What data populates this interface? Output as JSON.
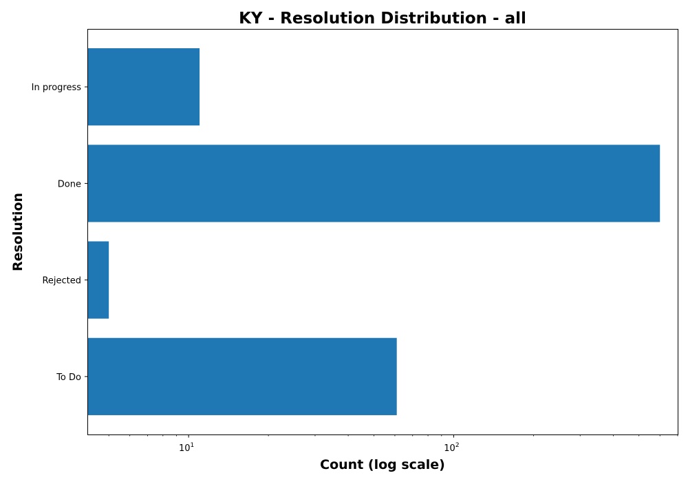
{
  "chart_data": {
    "type": "bar",
    "orientation": "horizontal",
    "title": "KY - Resolution Distribution - all",
    "xlabel": "Count (log scale)",
    "ylabel": "Resolution",
    "x_scale": "log",
    "xlim": [
      4.15,
      700
    ],
    "categories": [
      "In progress",
      "Done",
      "Rejected",
      "To Do"
    ],
    "values": [
      11,
      600,
      5,
      61
    ],
    "x_ticks": [
      {
        "value": 10,
        "base": "10",
        "exp": "1"
      },
      {
        "value": 100,
        "base": "10",
        "exp": "2"
      }
    ],
    "grid": false,
    "legend": "none",
    "bar_color": "#1f77b4"
  }
}
